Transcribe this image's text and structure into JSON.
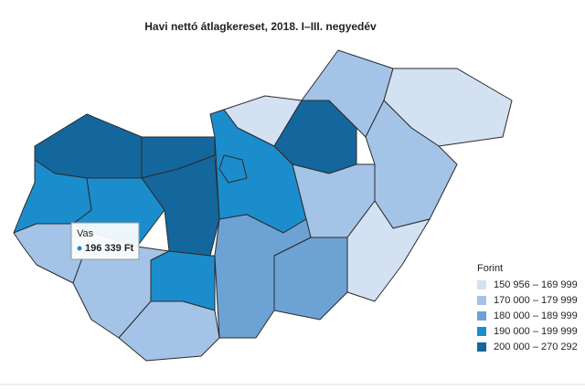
{
  "title": "Havi nettó átlagkereset, 2018. I–III. negyedév",
  "legend": {
    "title": "Forint",
    "items": [
      {
        "label": "150 956 – 169 999",
        "color": "#d3e1f3"
      },
      {
        "label": "170 000 – 179 999",
        "color": "#a4c4e7"
      },
      {
        "label": "180 000 – 189 999",
        "color": "#6da2d5"
      },
      {
        "label": "190 000 – 199 999",
        "color": "#1b8dcd"
      },
      {
        "label": "200 000 – 270 292",
        "color": "#14679d"
      }
    ]
  },
  "tooltip": {
    "name": "Vas",
    "value": "196 339 Ft"
  }
}
